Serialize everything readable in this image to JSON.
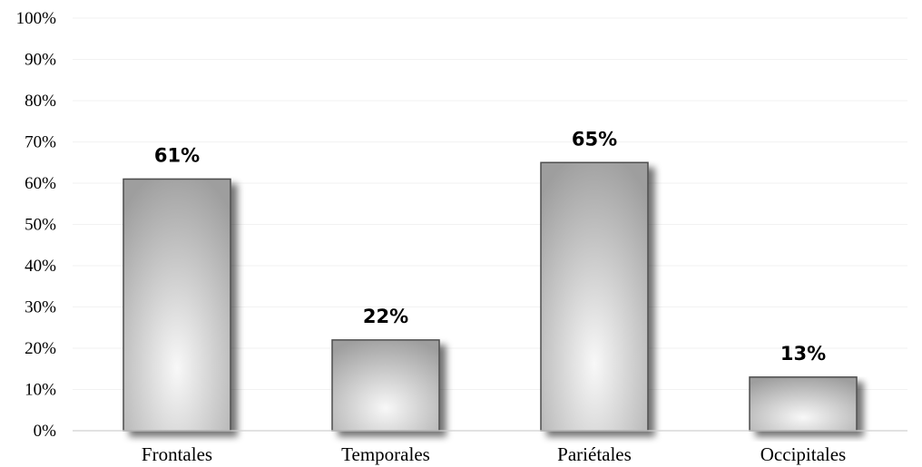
{
  "chart_data": {
    "type": "bar",
    "categories": [
      "Frontales",
      "Temporales",
      "Pariétales",
      "Occipitales"
    ],
    "values": [
      61,
      22,
      65,
      13
    ],
    "data_labels": [
      "61%",
      "22%",
      "65%",
      "13%"
    ],
    "ylim": [
      0,
      100
    ],
    "y_ticks": [
      0,
      10,
      20,
      30,
      40,
      50,
      60,
      70,
      80,
      90,
      100
    ],
    "y_tick_labels": [
      "0%",
      "10%",
      "20%",
      "30%",
      "40%",
      "50%",
      "60%",
      "70%",
      "80%",
      "90%",
      "100%"
    ],
    "title": "",
    "xlabel": "",
    "ylabel": "",
    "grid": true,
    "legend": "none",
    "colors": {
      "bar_edge": "#4d4d4d",
      "bar_fill_center": "#f8f8f8",
      "bar_fill_edge": "#9e9e9e",
      "gridline": "#f2f2f2"
    }
  }
}
